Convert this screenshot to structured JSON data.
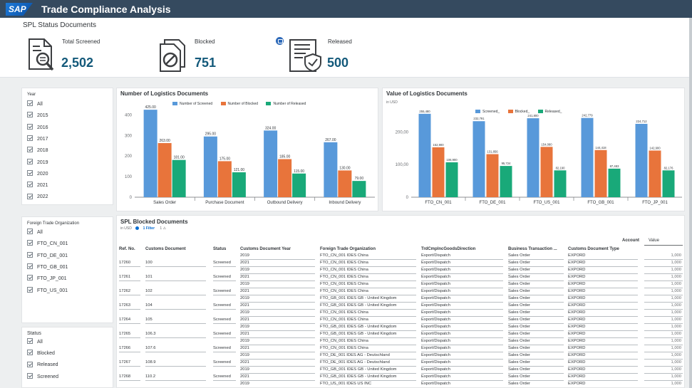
{
  "app": {
    "logo": "SAP",
    "title": "Trade Compliance Analysis"
  },
  "kpis": {
    "section_title": "SPL Status Documents",
    "screened": {
      "label": "Total Screened",
      "value": "2,502"
    },
    "blocked": {
      "label": "Blocked",
      "value": "751"
    },
    "released": {
      "label": "Released",
      "value": "500"
    }
  },
  "filters": {
    "year": {
      "title": "Year",
      "items": [
        "All",
        "2015",
        "2016",
        "2017",
        "2018",
        "2019",
        "2020",
        "2021",
        "2022"
      ]
    },
    "org": {
      "title": "Foreign Trade Organization",
      "items": [
        "All",
        "FTO_CN_001",
        "FTO_DE_001",
        "FTO_GB_001",
        "FTO_JP_001",
        "FTO_US_001"
      ]
    },
    "status": {
      "title": "Status",
      "items": [
        "All",
        "Blocked",
        "Released",
        "Screened"
      ]
    }
  },
  "colors": {
    "screened": "#5899da",
    "blocked": "#e8743b",
    "released": "#19a979"
  },
  "chart_data": [
    {
      "type": "bar",
      "title": "Number of Logistics Documents",
      "categories": [
        "Sales Order",
        "Purchase Document",
        "Outbound Delivery",
        "Inbound Delivery"
      ],
      "series": [
        {
          "name": "Number of Screened",
          "values": [
            425,
            295,
            324,
            267
          ],
          "labels": [
            "425.00",
            "295.00",
            "324.00",
            "267.00"
          ]
        },
        {
          "name": "Number of Blocked",
          "values": [
            263,
            175,
            185,
            130
          ],
          "labels": [
            "263.00",
            "175.00",
            "185.00",
            "130.00"
          ]
        },
        {
          "name": "Number of Released",
          "values": [
            181,
            121,
            115,
            79
          ],
          "labels": [
            "181.00",
            "121.00",
            "115.00",
            "79.00"
          ]
        }
      ],
      "yticks": [
        "0",
        "100",
        "200",
        "300",
        "400"
      ],
      "ylim": [
        0,
        460
      ]
    },
    {
      "type": "bar",
      "title": "Value of Logistics Documents",
      "subtitle": "in USD",
      "categories": [
        "FTO_CN_001",
        "FTO_DE_001",
        "FTO_US_001",
        "FTO_GB_001",
        "FTO_JP_001"
      ],
      "series": [
        {
          "name": "Screened_",
          "values": [
            255.48,
            232.791,
            241.8,
            242.779,
            224.712
          ],
          "labels": [
            "255,480",
            "232,791",
            "241,800",
            "242,779",
            "224,712"
          ]
        },
        {
          "name": "Blocked_",
          "values": [
            152.9,
            131.856,
            154.08,
            144.418,
            142.9
          ],
          "labels": [
            "152,900",
            "131,856",
            "154,080",
            "144,418",
            "142,900"
          ]
        },
        {
          "name": "Released_",
          "values": [
            106.9,
            95.724,
            82.19,
            87.483,
            82.176
          ],
          "labels": [
            "106,900",
            "95,724",
            "82,190",
            "87,483",
            "82,176"
          ]
        }
      ],
      "yticks": [
        "0",
        "100,00",
        "200,00"
      ],
      "ylim": [
        0,
        290
      ]
    }
  ],
  "table": {
    "title": "SPL Blocked Documents",
    "subtitle": "in USD",
    "filter_text": "1 Filter",
    "filter_count": "1",
    "account_label": "Account",
    "value_label": "Value",
    "columns": [
      "Ref. No.",
      "Customs Document",
      "Status",
      "Customs Document Year",
      "Foreign Trade Organization",
      "TrdCmplncGoodsDirection",
      "Business Transaction ...",
      "Customs Document Type"
    ],
    "rows": [
      [
        "",
        "",
        "",
        "2019",
        "FTO_CN_001 IDES China",
        "Export/Dispatch",
        "Sales Order",
        "EXPORD",
        "1,000"
      ],
      [
        "17260",
        "100",
        "Screened",
        "2021",
        "FTO_CN_001 IDES China",
        "Export/Dispatch",
        "Sales Order",
        "EXPORD",
        "1,000"
      ],
      [
        "",
        "",
        "",
        "2019",
        "FTO_CN_001 IDES China",
        "Export/Dispatch",
        "Sales Order",
        "EXPORD",
        "1,000"
      ],
      [
        "17261",
        "101",
        "Screened",
        "2021",
        "FTO_CN_001 IDES China",
        "Export/Dispatch",
        "Sales Order",
        "EXPORD",
        "1,000"
      ],
      [
        "",
        "",
        "",
        "2019",
        "FTO_CN_001 IDES China",
        "Export/Dispatch",
        "Sales Order",
        "EXPORD",
        "1,000"
      ],
      [
        "17262",
        "102",
        "Screened",
        "2021",
        "FTO_CN_001 IDES China",
        "Export/Dispatch",
        "Sales Order",
        "EXPORD",
        "1,000"
      ],
      [
        "",
        "",
        "",
        "2019",
        "FTO_GB_001 IDES GB - United Kingdom",
        "Export/Dispatch",
        "Sales Order",
        "EXPORD",
        "1,000"
      ],
      [
        "17263",
        "104",
        "Screened",
        "2021",
        "FTO_GB_001 IDES GB - United Kingdom",
        "Export/Dispatch",
        "Sales Order",
        "EXPORD",
        "1,000"
      ],
      [
        "",
        "",
        "",
        "2019",
        "FTO_CN_001 IDES China",
        "Export/Dispatch",
        "Sales Order",
        "EXPORD",
        "1,000"
      ],
      [
        "17264",
        "105",
        "Screened",
        "2021",
        "FTO_CN_001 IDES China",
        "Export/Dispatch",
        "Sales Order",
        "EXPORD",
        "1,000"
      ],
      [
        "",
        "",
        "",
        "2019",
        "FTO_GB_001 IDES GB - United Kingdom",
        "Export/Dispatch",
        "Sales Order",
        "EXPORD",
        "1,000"
      ],
      [
        "17265",
        "106.3",
        "Screened",
        "2021",
        "FTO_GB_001 IDES GB - United Kingdom",
        "Export/Dispatch",
        "Sales Order",
        "EXPORD",
        "1,000"
      ],
      [
        "",
        "",
        "",
        "2019",
        "FTO_CN_001 IDES China",
        "Export/Dispatch",
        "Sales Order",
        "EXPORD",
        "1,000"
      ],
      [
        "17266",
        "107.6",
        "Screened",
        "2021",
        "FTO_CN_001 IDES China",
        "Export/Dispatch",
        "Sales Order",
        "EXPORD",
        "1,000"
      ],
      [
        "",
        "",
        "",
        "2019",
        "FTO_DE_001 IDES AG - Deutschland",
        "Export/Dispatch",
        "Sales Order",
        "EXPORD",
        "1,000"
      ],
      [
        "17267",
        "108.9",
        "Screened",
        "2021",
        "FTO_DE_001 IDES AG - Deutschland",
        "Export/Dispatch",
        "Sales Order",
        "EXPORD",
        "1,000"
      ],
      [
        "",
        "",
        "",
        "2019",
        "FTO_GB_001 IDES GB - United Kingdom",
        "Export/Dispatch",
        "Sales Order",
        "EXPORD",
        "1,000"
      ],
      [
        "17268",
        "110.2",
        "Screened",
        "2021",
        "FTO_GB_001 IDES GB - United Kingdom",
        "Export/Dispatch",
        "Sales Order",
        "EXPORD",
        "1,000"
      ],
      [
        "",
        "",
        "",
        "2019",
        "FTO_US_001 IDES US INC",
        "Export/Dispatch",
        "Sales Order",
        "EXPORD",
        "1,000"
      ]
    ]
  }
}
